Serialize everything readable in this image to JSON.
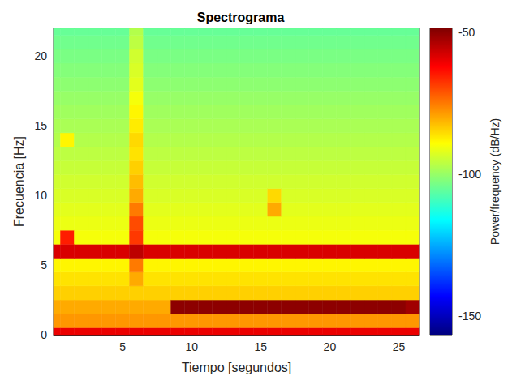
{
  "chart_data": {
    "type": "heatmap",
    "title": "Spectrograma",
    "x_label": "Tiempo [segundos]",
    "y_label": "Frecuencia [Hz]",
    "colorbar_label": "Power/frequency (dB/Hz)",
    "xlim": [
      0,
      26.5
    ],
    "ylim": [
      0,
      22
    ],
    "xticks": [
      5,
      10,
      15,
      20,
      25
    ],
    "yticks": [
      0,
      5,
      10,
      15,
      20
    ],
    "clim": [
      -156.5,
      -48.5
    ],
    "cticks": [
      -50,
      -100,
      -150
    ],
    "x": [
      0,
      1,
      2,
      3,
      4,
      5,
      6,
      7,
      8,
      9,
      10,
      11,
      12,
      13,
      14,
      15,
      16,
      17,
      18,
      19,
      20,
      21,
      22,
      23,
      24,
      25,
      26
    ],
    "y": [
      0,
      1,
      2,
      3,
      4,
      5,
      6,
      7,
      8,
      9,
      10,
      11,
      12,
      13,
      14,
      15,
      16,
      17,
      18,
      19,
      20,
      21,
      22
    ],
    "values": [
      [
        -60,
        -60,
        -60,
        -60,
        -60,
        -60,
        -60,
        -60,
        -60,
        -60,
        -60,
        -60,
        -60,
        -60,
        -60,
        -60,
        -60,
        -60,
        -60,
        -60,
        -60,
        -60,
        -60,
        -60,
        -60,
        -60,
        -60
      ],
      [
        -78,
        -78,
        -78,
        -78,
        -78,
        -78,
        -78,
        -78,
        -78,
        -78,
        -78,
        -78,
        -78,
        -78,
        -78,
        -78,
        -78,
        -78,
        -78,
        -78,
        -78,
        -78,
        -78,
        -78,
        -78,
        -78,
        -78
      ],
      [
        -80,
        -80,
        -80,
        -80,
        -80,
        -80,
        -80,
        -80,
        -80,
        -50,
        -50,
        -50,
        -50,
        -50,
        -50,
        -50,
        -50,
        -50,
        -50,
        -50,
        -50,
        -50,
        -50,
        -50,
        -50,
        -50,
        -52
      ],
      [
        -84,
        -84,
        -84,
        -84,
        -84,
        -84,
        -84,
        -84,
        -84,
        -84,
        -84,
        -84,
        -84,
        -84,
        -84,
        -84,
        -84,
        -84,
        -84,
        -84,
        -84,
        -84,
        -84,
        -84,
        -84,
        -84,
        -84
      ],
      [
        -86,
        -86,
        -86,
        -86,
        -86,
        -86,
        -80,
        -86,
        -86,
        -86,
        -86,
        -86,
        -86,
        -86,
        -86,
        -86,
        -86,
        -86,
        -86,
        -86,
        -86,
        -86,
        -86,
        -86,
        -86,
        -86,
        -86
      ],
      [
        -88,
        -88,
        -88,
        -88,
        -88,
        -88,
        -75,
        -88,
        -88,
        -88,
        -88,
        -88,
        -88,
        -88,
        -88,
        -88,
        -88,
        -88,
        -88,
        -88,
        -88,
        -88,
        -88,
        -88,
        -88,
        -88,
        -88
      ],
      [
        -58,
        -58,
        -58,
        -58,
        -58,
        -58,
        -55,
        -58,
        -58,
        -58,
        -58,
        -58,
        -58,
        -58,
        -58,
        -58,
        -58,
        -58,
        -58,
        -58,
        -58,
        -58,
        -58,
        -58,
        -58,
        -58,
        -58
      ],
      [
        -90,
        -65,
        -90,
        -90,
        -90,
        -90,
        -68,
        -90,
        -90,
        -90,
        -90,
        -90,
        -90,
        -90,
        -90,
        -90,
        -90,
        -90,
        -90,
        -90,
        -90,
        -90,
        -90,
        -90,
        -90,
        -90,
        -90
      ],
      [
        -91,
        -91,
        -91,
        -91,
        -91,
        -91,
        -70,
        -91,
        -91,
        -91,
        -91,
        -91,
        -91,
        -91,
        -91,
        -91,
        -91,
        -91,
        -91,
        -91,
        -91,
        -91,
        -91,
        -91,
        -91,
        -91,
        -91
      ],
      [
        -92,
        -92,
        -92,
        -92,
        -92,
        -92,
        -75,
        -92,
        -92,
        -92,
        -92,
        -92,
        -92,
        -92,
        -92,
        -92,
        -80,
        -92,
        -92,
        -92,
        -92,
        -92,
        -92,
        -92,
        -92,
        -92,
        -92
      ],
      [
        -93,
        -93,
        -93,
        -93,
        -93,
        -93,
        -80,
        -93,
        -93,
        -93,
        -93,
        -93,
        -93,
        -93,
        -93,
        -93,
        -85,
        -93,
        -93,
        -93,
        -93,
        -93,
        -93,
        -93,
        -93,
        -93,
        -93
      ],
      [
        -94,
        -94,
        -94,
        -94,
        -94,
        -94,
        -82,
        -94,
        -94,
        -94,
        -94,
        -94,
        -94,
        -94,
        -94,
        -94,
        -94,
        -94,
        -94,
        -94,
        -94,
        -94,
        -94,
        -94,
        -94,
        -94,
        -94
      ],
      [
        -95,
        -95,
        -95,
        -95,
        -95,
        -95,
        -84,
        -95,
        -95,
        -95,
        -95,
        -95,
        -95,
        -95,
        -95,
        -95,
        -95,
        -95,
        -95,
        -95,
        -95,
        -95,
        -95,
        -95,
        -95,
        -95,
        -95
      ],
      [
        -96,
        -96,
        -96,
        -96,
        -96,
        -96,
        -86,
        -96,
        -96,
        -96,
        -96,
        -96,
        -96,
        -96,
        -96,
        -96,
        -96,
        -96,
        -96,
        -96,
        -96,
        -96,
        -96,
        -96,
        -96,
        -96,
        -96
      ],
      [
        -97,
        -88,
        -97,
        -97,
        -97,
        -97,
        -85,
        -97,
        -97,
        -97,
        -97,
        -97,
        -97,
        -97,
        -97,
        -97,
        -97,
        -97,
        -97,
        -97,
        -97,
        -97,
        -97,
        -97,
        -97,
        -97,
        -97
      ],
      [
        -98,
        -98,
        -98,
        -98,
        -98,
        -98,
        -87,
        -98,
        -98,
        -98,
        -98,
        -98,
        -98,
        -98,
        -98,
        -98,
        -98,
        -98,
        -98,
        -98,
        -98,
        -98,
        -98,
        -98,
        -98,
        -98,
        -98
      ],
      [
        -99,
        -99,
        -99,
        -99,
        -99,
        -99,
        -88,
        -99,
        -99,
        -99,
        -99,
        -99,
        -99,
        -99,
        -99,
        -99,
        -99,
        -99,
        -99,
        -99,
        -99,
        -99,
        -99,
        -99,
        -99,
        -99,
        -99
      ],
      [
        -100,
        -100,
        -100,
        -100,
        -100,
        -100,
        -90,
        -100,
        -100,
        -100,
        -100,
        -100,
        -100,
        -100,
        -100,
        -100,
        -100,
        -100,
        -100,
        -100,
        -100,
        -100,
        -100,
        -100,
        -100,
        -100,
        -100
      ],
      [
        -101,
        -101,
        -101,
        -101,
        -101,
        -101,
        -92,
        -101,
        -101,
        -101,
        -101,
        -101,
        -101,
        -101,
        -101,
        -101,
        -101,
        -101,
        -101,
        -101,
        -101,
        -101,
        -101,
        -101,
        -101,
        -101,
        -101
      ],
      [
        -102,
        -102,
        -102,
        -102,
        -102,
        -102,
        -93,
        -102,
        -102,
        -102,
        -102,
        -102,
        -102,
        -102,
        -102,
        -102,
        -102,
        -102,
        -102,
        -102,
        -102,
        -102,
        -102,
        -102,
        -102,
        -102,
        -102
      ],
      [
        -103,
        -103,
        -103,
        -103,
        -103,
        -103,
        -94,
        -103,
        -103,
        -103,
        -103,
        -103,
        -103,
        -103,
        -103,
        -103,
        -103,
        -103,
        -103,
        -103,
        -103,
        -103,
        -103,
        -103,
        -103,
        -103,
        -103
      ],
      [
        -104,
        -104,
        -104,
        -104,
        -104,
        -104,
        -96,
        -104,
        -104,
        -104,
        -104,
        -104,
        -104,
        -104,
        -104,
        -104,
        -104,
        -104,
        -104,
        -104,
        -104,
        -104,
        -104,
        -104,
        -104,
        -104,
        -104
      ],
      [
        -105,
        -105,
        -105,
        -105,
        -105,
        -105,
        -97,
        -105,
        -105,
        -105,
        -105,
        -105,
        -105,
        -105,
        -105,
        -105,
        -105,
        -105,
        -105,
        -105,
        -105,
        -105,
        -105,
        -105,
        -105,
        -105,
        -105
      ]
    ]
  }
}
